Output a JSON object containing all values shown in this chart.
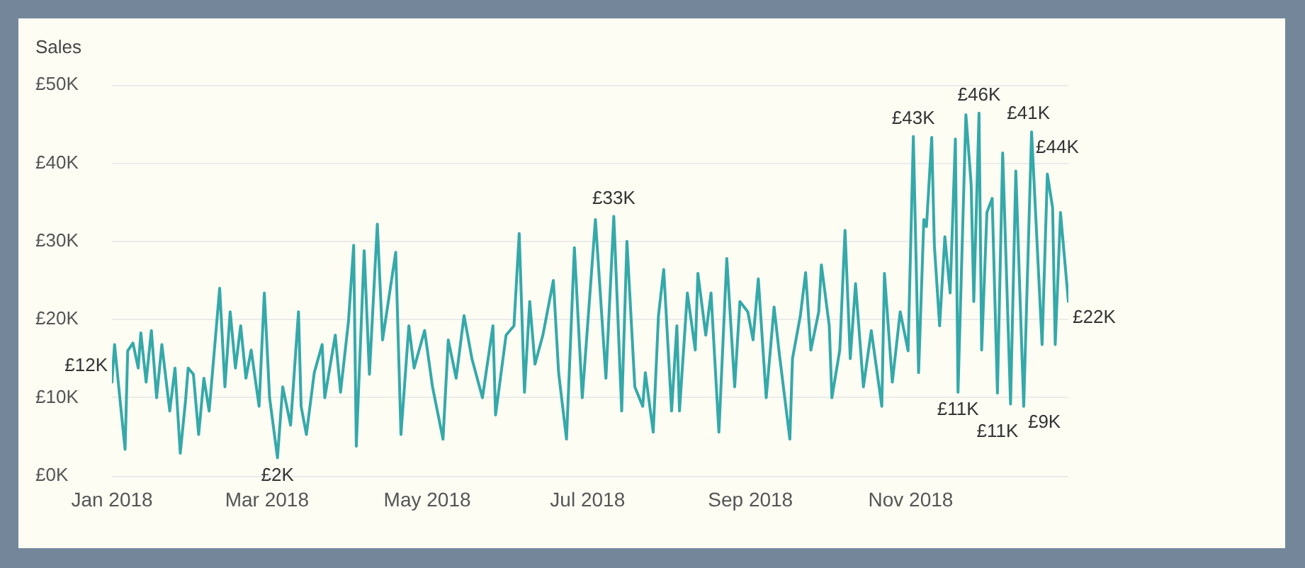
{
  "chart_data": {
    "type": "line",
    "ylabel": "Sales",
    "color": "#35a9a9",
    "x": [
      "2018-01-01",
      "2018-01-02",
      "2018-01-04",
      "2018-01-06",
      "2018-01-07",
      "2018-01-09",
      "2018-01-11",
      "2018-01-12",
      "2018-01-14",
      "2018-01-16",
      "2018-01-18",
      "2018-01-20",
      "2018-01-23",
      "2018-01-25",
      "2018-01-27",
      "2018-01-29",
      "2018-01-30",
      "2018-02-01",
      "2018-02-03",
      "2018-02-05",
      "2018-02-07",
      "2018-02-11",
      "2018-02-13",
      "2018-02-15",
      "2018-02-17",
      "2018-02-19",
      "2018-02-21",
      "2018-02-23",
      "2018-02-26",
      "2018-02-28",
      "2018-03-02",
      "2018-03-05",
      "2018-03-07",
      "2018-03-10",
      "2018-03-13",
      "2018-03-14",
      "2018-03-16",
      "2018-03-19",
      "2018-03-22",
      "2018-03-23",
      "2018-03-27",
      "2018-03-29",
      "2018-04-01",
      "2018-04-03",
      "2018-04-04",
      "2018-04-07",
      "2018-04-09",
      "2018-04-12",
      "2018-04-14",
      "2018-04-19",
      "2018-04-21",
      "2018-04-24",
      "2018-04-26",
      "2018-04-30",
      "2018-05-03",
      "2018-05-07",
      "2018-05-09",
      "2018-05-12",
      "2018-05-15",
      "2018-05-18",
      "2018-05-22",
      "2018-05-26",
      "2018-05-27",
      "2018-05-31",
      "2018-06-03",
      "2018-06-05",
      "2018-06-07",
      "2018-06-09",
      "2018-06-11",
      "2018-06-14",
      "2018-06-18",
      "2018-06-20",
      "2018-06-23",
      "2018-06-26",
      "2018-06-29",
      "2018-07-04",
      "2018-07-08",
      "2018-07-11",
      "2018-07-14",
      "2018-07-16",
      "2018-07-19",
      "2018-07-22",
      "2018-07-23",
      "2018-07-26",
      "2018-07-28",
      "2018-07-30",
      "2018-08-02",
      "2018-08-04",
      "2018-08-05",
      "2018-08-08",
      "2018-08-11",
      "2018-08-12",
      "2018-08-15",
      "2018-08-17",
      "2018-08-20",
      "2018-08-23",
      "2018-08-26",
      "2018-08-28",
      "2018-08-31",
      "2018-09-02",
      "2018-09-04",
      "2018-09-07",
      "2018-09-10",
      "2018-09-12",
      "2018-09-16",
      "2018-09-17",
      "2018-09-20",
      "2018-09-22",
      "2018-09-24",
      "2018-09-27",
      "2018-09-28",
      "2018-10-01",
      "2018-10-02",
      "2018-10-05",
      "2018-10-07",
      "2018-10-09",
      "2018-10-11",
      "2018-10-14",
      "2018-10-17",
      "2018-10-21",
      "2018-10-22",
      "2018-10-25",
      "2018-10-28",
      "2018-10-31",
      "2018-11-02",
      "2018-11-04",
      "2018-11-06",
      "2018-11-07",
      "2018-11-09",
      "2018-11-10",
      "2018-11-12",
      "2018-11-14",
      "2018-11-16",
      "2018-11-18",
      "2018-11-19",
      "2018-11-22",
      "2018-11-24",
      "2018-11-25",
      "2018-11-27",
      "2018-11-28",
      "2018-11-30",
      "2018-12-02",
      "2018-12-04",
      "2018-12-06",
      "2018-12-09",
      "2018-12-11",
      "2018-12-14",
      "2018-12-17",
      "2018-12-21",
      "2018-12-23",
      "2018-12-25",
      "2018-12-26",
      "2018-12-28",
      "2018-12-31"
    ],
    "values": [
      12,
      16.8,
      10,
      3.4,
      16,
      17,
      13.8,
      18.3,
      12,
      18.6,
      10,
      16.8,
      8.3,
      13.8,
      2.9,
      9.6,
      13.8,
      13,
      5.3,
      12.5,
      8.3,
      24,
      11.4,
      21,
      13.8,
      19.2,
      12.5,
      16.1,
      8.9,
      23.4,
      10,
      2.3,
      11.4,
      6.5,
      21,
      8.9,
      5.3,
      13.2,
      16.8,
      10,
      18,
      10.7,
      19.7,
      29.5,
      3.8,
      28.8,
      13,
      32.2,
      17.4,
      28.6,
      5.3,
      19.2,
      13.8,
      18.6,
      11.4,
      4.7,
      17.4,
      12.5,
      20.5,
      15,
      10,
      19.2,
      7.8,
      18,
      19.2,
      31,
      10.7,
      22.3,
      14.3,
      18,
      25,
      13.2,
      4.7,
      29.2,
      10,
      32.8,
      12.5,
      33.2,
      8.3,
      30,
      11.4,
      8.9,
      13.2,
      5.6,
      20.5,
      26.4,
      8.3,
      19.2,
      8.3,
      23.4,
      16.1,
      25.9,
      18,
      23.4,
      5.6,
      27.8,
      11.4,
      22.3,
      21,
      17.4,
      25.2,
      10,
      21.6,
      15.6,
      4.7,
      15,
      20.5,
      26,
      16.1,
      21,
      27,
      19.2,
      10,
      16.1,
      31.4,
      15,
      24.6,
      11.4,
      18.6,
      8.9,
      25.9,
      12,
      21,
      16,
      43.4,
      13.2,
      32.8,
      31.9,
      43.3,
      29.5,
      19.2,
      30.6,
      23.4,
      43.1,
      10.7,
      46.2,
      37.3,
      22.3,
      46.4,
      16.1,
      33.7,
      35.5,
      10.6,
      41.3,
      9.2,
      39,
      8.9,
      44,
      16.8,
      38.6,
      34.3,
      16.8,
      33.7,
      22.3
    ],
    "value_labels": [
      "£12K",
      null,
      null,
      null,
      null,
      null,
      null,
      null,
      null,
      null,
      null,
      null,
      null,
      null,
      null,
      null,
      null,
      null,
      null,
      null,
      null,
      null,
      null,
      null,
      null,
      null,
      null,
      null,
      null,
      null,
      null,
      "£2K",
      null,
      null,
      null,
      null,
      null,
      null,
      null,
      null,
      null,
      null,
      null,
      null,
      null,
      null,
      null,
      null,
      null,
      null,
      null,
      null,
      null,
      null,
      null,
      null,
      null,
      null,
      null,
      null,
      null,
      null,
      null,
      null,
      null,
      null,
      null,
      null,
      null,
      null,
      null,
      null,
      null,
      null,
      null,
      null,
      null,
      "£33K",
      null,
      null,
      null,
      null,
      null,
      null,
      null,
      null,
      null,
      null,
      null,
      null,
      null,
      null,
      null,
      null,
      null,
      null,
      null,
      null,
      null,
      null,
      null,
      null,
      null,
      null,
      null,
      null,
      null,
      null,
      null,
      null,
      null,
      null,
      null,
      null,
      null,
      null,
      null,
      null,
      null,
      null,
      null,
      null,
      null,
      null,
      "£43K",
      null,
      null,
      null,
      null,
      null,
      null,
      null,
      null,
      null,
      "£11K",
      null,
      null,
      null,
      "£46K",
      null,
      null,
      null,
      "£11K",
      "£41K",
      null,
      null,
      "£9K",
      "£44K",
      null,
      null,
      null,
      null,
      null,
      "£22K"
    ],
    "xlim": [
      "2018-01-01",
      "2018-12-31"
    ],
    "xticks": [
      {
        "value": "2018-01-01",
        "label": "Jan 2018"
      },
      {
        "value": "2018-03-01",
        "label": "Mar 2018"
      },
      {
        "value": "2018-05-01",
        "label": "May 2018"
      },
      {
        "value": "2018-07-01",
        "label": "Jul 2018"
      },
      {
        "value": "2018-09-01",
        "label": "Sep 2018"
      },
      {
        "value": "2018-11-01",
        "label": "Nov 2018"
      }
    ],
    "ylim": [
      0,
      50
    ],
    "yticks": [
      {
        "value": 0,
        "label": "£0K"
      },
      {
        "value": 10,
        "label": "£10K"
      },
      {
        "value": 20,
        "label": "£20K"
      },
      {
        "value": 30,
        "label": "£30K"
      },
      {
        "value": 40,
        "label": "£40K"
      },
      {
        "value": 50,
        "label": "£50K"
      }
    ],
    "grid": "y"
  }
}
